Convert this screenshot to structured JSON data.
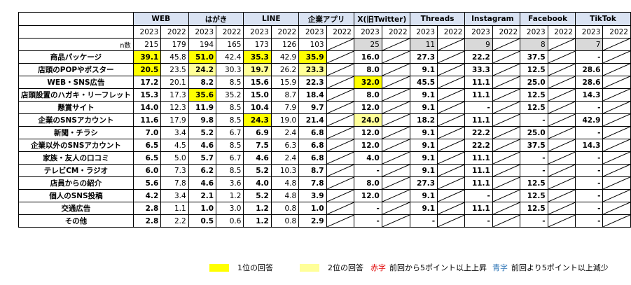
{
  "table": {
    "n_label": "n数",
    "channels": [
      {
        "name": "WEB",
        "years": [
          "2023",
          "2022"
        ],
        "n": [
          "215",
          "179"
        ]
      },
      {
        "name": "はがき",
        "years": [
          "2023",
          "2022"
        ],
        "n": [
          "194",
          "165"
        ]
      },
      {
        "name": "LINE",
        "years": [
          "2023",
          "2022"
        ],
        "n": [
          "173",
          "126"
        ]
      },
      {
        "name": "企業アプリ",
        "years": [
          "2023",
          "2022"
        ],
        "n": [
          "103",
          ""
        ]
      },
      {
        "name": "X(旧Twitter)",
        "years": [
          "2023",
          "2022"
        ],
        "n": [
          "25",
          ""
        ]
      },
      {
        "name": "Threads",
        "years": [
          "2023",
          "2022"
        ],
        "n": [
          "11",
          ""
        ]
      },
      {
        "name": "Instagram",
        "years": [
          "2023",
          "2022"
        ],
        "n": [
          "9",
          ""
        ]
      },
      {
        "name": "Facebook",
        "years": [
          "2023",
          "2022"
        ],
        "n": [
          "8",
          ""
        ]
      },
      {
        "name": "TikTok",
        "years": [
          "2023",
          "2022"
        ],
        "n": [
          "7",
          ""
        ]
      }
    ],
    "rows": [
      {
        "label": "商品パッケージ",
        "values": [
          "39.1",
          "45.8",
          "51.0",
          "42.4",
          "35.3",
          "42.9",
          "35.9",
          "",
          "16.0",
          "",
          "27.3",
          "",
          "22.2",
          "",
          "37.5",
          "",
          "-",
          ""
        ]
      },
      {
        "label": "店頭のPOPやポスター",
        "values": [
          "20.5",
          "23.5",
          "24.2",
          "30.3",
          "19.7",
          "26.2",
          "23.3",
          "",
          "8.0",
          "",
          "9.1",
          "",
          "33.3",
          "",
          "12.5",
          "",
          "28.6",
          ""
        ]
      },
      {
        "label": "WEB・SNS広告",
        "values": [
          "17.2",
          "20.1",
          "8.2",
          "8.5",
          "15.6",
          "15.9",
          "22.3",
          "",
          "32.0",
          "",
          "45.5",
          "",
          "11.1",
          "",
          "25.0",
          "",
          "28.6",
          ""
        ]
      },
      {
        "label": "店頭設置のハガキ・リーフレット",
        "values": [
          "15.3",
          "17.3",
          "35.6",
          "35.2",
          "15.0",
          "8.7",
          "18.4",
          "",
          "8.0",
          "",
          "9.1",
          "",
          "11.1",
          "",
          "12.5",
          "",
          "14.3",
          ""
        ]
      },
      {
        "label": "懸賞サイト",
        "values": [
          "14.0",
          "12.3",
          "11.9",
          "8.5",
          "10.4",
          "7.9",
          "9.7",
          "",
          "12.0",
          "",
          "9.1",
          "",
          "-",
          "",
          "12.5",
          "",
          "-",
          ""
        ]
      },
      {
        "label": "企業のSNSアカウント",
        "values": [
          "11.6",
          "17.9",
          "9.8",
          "8.5",
          "24.3",
          "19.0",
          "21.4",
          "",
          "24.0",
          "",
          "18.2",
          "",
          "11.1",
          "",
          "-",
          "",
          "42.9",
          ""
        ]
      },
      {
        "label": "新聞・チラシ",
        "values": [
          "7.0",
          "3.4",
          "5.2",
          "6.7",
          "6.9",
          "2.4",
          "6.8",
          "",
          "12.0",
          "",
          "9.1",
          "",
          "22.2",
          "",
          "25.0",
          "",
          "-",
          ""
        ]
      },
      {
        "label": "企業以外のSNSアカウント",
        "values": [
          "6.5",
          "4.5",
          "4.6",
          "8.5",
          "7.5",
          "6.3",
          "6.8",
          "",
          "12.0",
          "",
          "9.1",
          "",
          "22.2",
          "",
          "37.5",
          "",
          "14.3",
          ""
        ]
      },
      {
        "label": "家族・友人の口コミ",
        "values": [
          "6.5",
          "5.0",
          "5.7",
          "6.7",
          "4.6",
          "2.4",
          "6.8",
          "",
          "4.0",
          "",
          "9.1",
          "",
          "11.1",
          "",
          "-",
          "",
          "-",
          ""
        ]
      },
      {
        "label": "テレビCM・ラジオ",
        "values": [
          "6.0",
          "7.3",
          "6.2",
          "8.5",
          "5.2",
          "10.3",
          "8.7",
          "",
          "-",
          "",
          "9.1",
          "",
          "11.1",
          "",
          "-",
          "",
          "-",
          ""
        ]
      },
      {
        "label": "店員からの紹介",
        "values": [
          "5.6",
          "7.8",
          "4.6",
          "3.6",
          "4.0",
          "4.8",
          "7.8",
          "",
          "8.0",
          "",
          "27.3",
          "",
          "11.1",
          "",
          "12.5",
          "",
          "-",
          ""
        ]
      },
      {
        "label": "個人のSNS投稿",
        "values": [
          "4.2",
          "3.4",
          "2.1",
          "1.2",
          "5.2",
          "4.8",
          "3.9",
          "",
          "12.0",
          "",
          "9.1",
          "",
          "-",
          "",
          "12.5",
          "",
          "-",
          ""
        ]
      },
      {
        "label": "交通広告",
        "values": [
          "2.8",
          "1.1",
          "1.0",
          "3.0",
          "1.2",
          "0.8",
          "1.0",
          "",
          "-",
          "",
          "9.1",
          "",
          "11.1",
          "",
          "12.5",
          "",
          "-",
          ""
        ]
      },
      {
        "label": "その他",
        "values": [
          "2.8",
          "2.2",
          "0.5",
          "0.6",
          "1.2",
          "0.8",
          "2.9",
          "",
          "-",
          "",
          "-",
          "",
          "-",
          "",
          "-",
          "",
          "-",
          ""
        ]
      }
    ],
    "highlights": {
      "first": [
        [
          0,
          0
        ],
        [
          0,
          2
        ],
        [
          0,
          4
        ],
        [
          0,
          6
        ],
        [
          1,
          0
        ],
        [
          2,
          8
        ],
        [
          3,
          2
        ],
        [
          5,
          4
        ]
      ],
      "second": [
        [
          1,
          2
        ],
        [
          1,
          4
        ],
        [
          1,
          6
        ],
        [
          5,
          8
        ]
      ]
    },
    "highlight_colors": {
      "first": "#ffff00",
      "second": "#ffff99"
    }
  },
  "legend": {
    "first_label": "1位の回答",
    "second_label": "2位の回答",
    "red_word": "赤字",
    "red_text": "前回から5ポイント以上上昇",
    "blue_word": "青字",
    "blue_text": "前回より5ポイント以上減少",
    "red_color": "#e00000",
    "blue_color": "#2e75b6"
  }
}
